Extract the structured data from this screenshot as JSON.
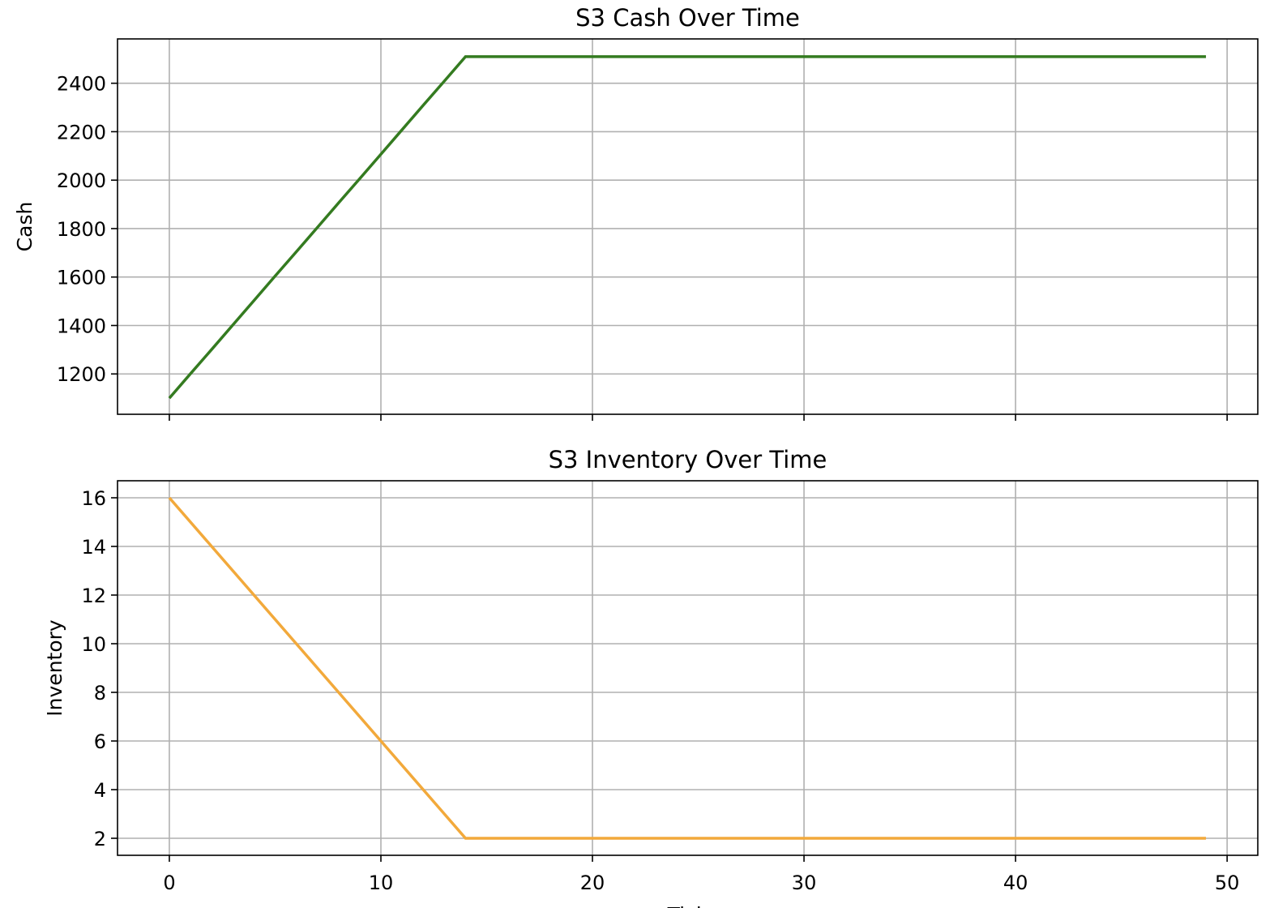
{
  "chart_data": [
    {
      "type": "line",
      "title": "S3 Cash Over Time",
      "y_label": "Cash",
      "x": [
        0,
        1,
        2,
        3,
        4,
        5,
        6,
        7,
        8,
        9,
        10,
        11,
        12,
        13,
        14,
        15,
        16,
        17,
        18,
        19,
        20,
        21,
        22,
        23,
        24,
        25,
        26,
        27,
        28,
        29,
        30,
        31,
        32,
        33,
        34,
        35,
        36,
        37,
        38,
        39,
        40,
        41,
        42,
        43,
        44,
        45,
        46,
        47,
        48,
        49
      ],
      "series": [
        {
          "name": "Cash",
          "color": "#347b20",
          "values": [
            1100,
            1201,
            1301,
            1402,
            1503,
            1604,
            1704,
            1805,
            1906,
            2006,
            2107,
            2208,
            2309,
            2409,
            2510,
            2510,
            2510,
            2510,
            2510,
            2510,
            2510,
            2510,
            2510,
            2510,
            2510,
            2510,
            2510,
            2510,
            2510,
            2510,
            2510,
            2510,
            2510,
            2510,
            2510,
            2510,
            2510,
            2510,
            2510,
            2510,
            2510,
            2510,
            2510,
            2510,
            2510,
            2510,
            2510,
            2510,
            2510,
            2510
          ]
        }
      ],
      "xlim": [
        -2.45,
        51.45
      ],
      "xticks": [
        0,
        10,
        20,
        30,
        40,
        50
      ],
      "ylim": [
        1033.5,
        2583
      ],
      "yticks": [
        1200,
        1400,
        1600,
        1800,
        2000,
        2200,
        2400
      ],
      "grid": true
    },
    {
      "type": "line",
      "title": "S3 Inventory Over Time",
      "y_label": "Inventory",
      "x_label": "Tick",
      "x": [
        0,
        1,
        2,
        3,
        4,
        5,
        6,
        7,
        8,
        9,
        10,
        11,
        12,
        13,
        14,
        15,
        16,
        17,
        18,
        19,
        20,
        21,
        22,
        23,
        24,
        25,
        26,
        27,
        28,
        29,
        30,
        31,
        32,
        33,
        34,
        35,
        36,
        37,
        38,
        39,
        40,
        41,
        42,
        43,
        44,
        45,
        46,
        47,
        48,
        49
      ],
      "series": [
        {
          "name": "Inventory",
          "color": "#f2a93b",
          "values": [
            16,
            15,
            14,
            13,
            12,
            11,
            10,
            9,
            8,
            7,
            6,
            5,
            4,
            3,
            2,
            2,
            2,
            2,
            2,
            2,
            2,
            2,
            2,
            2,
            2,
            2,
            2,
            2,
            2,
            2,
            2,
            2,
            2,
            2,
            2,
            2,
            2,
            2,
            2,
            2,
            2,
            2,
            2,
            2,
            2,
            2,
            2,
            2,
            2,
            2
          ]
        }
      ],
      "xlim": [
        -2.45,
        51.45
      ],
      "xticks": [
        0,
        10,
        20,
        30,
        40,
        50
      ],
      "ylim": [
        1.3,
        16.7
      ],
      "yticks": [
        2,
        4,
        6,
        8,
        10,
        12,
        14,
        16
      ],
      "grid": true,
      "show_xtick_labels": true
    }
  ]
}
